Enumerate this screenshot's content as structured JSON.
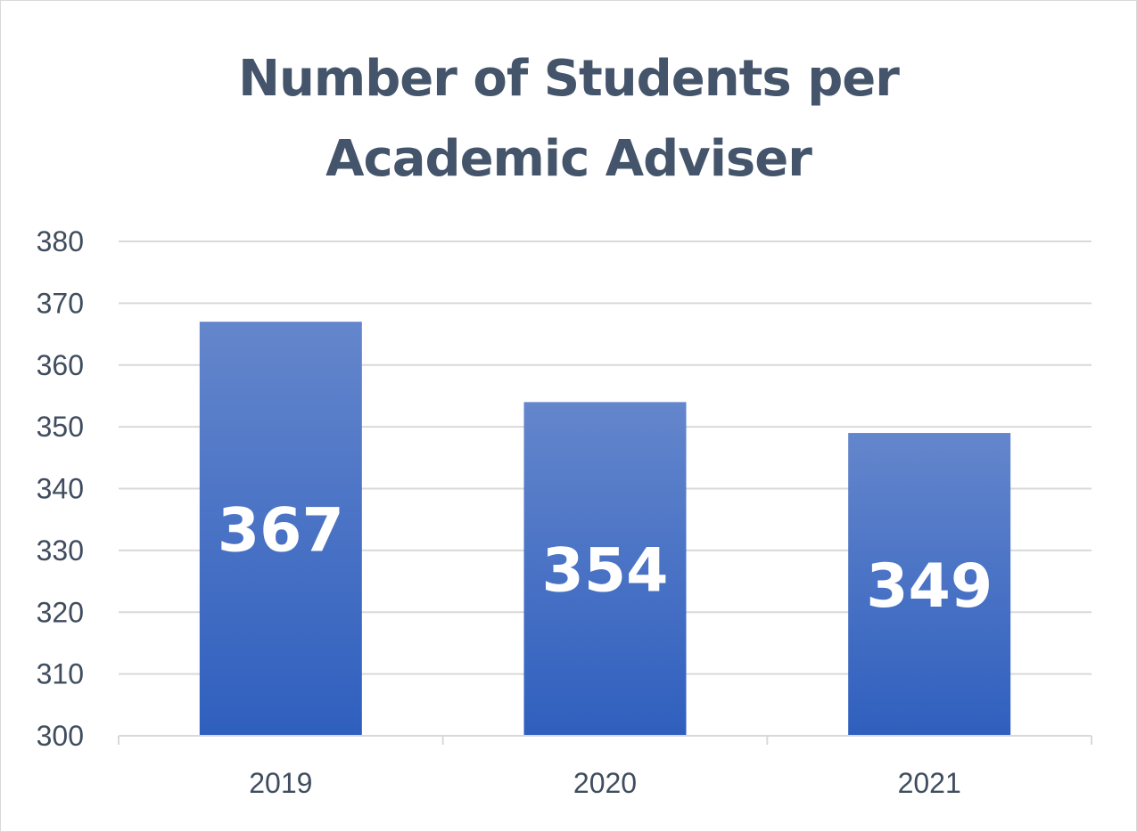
{
  "chart_data": {
    "type": "bar",
    "title_lines": [
      "Number of Students per",
      "Academic Adviser"
    ],
    "categories": [
      "2019",
      "2020",
      "2021"
    ],
    "values": [
      367,
      354,
      349
    ],
    "data_labels": [
      "367",
      "354",
      "349"
    ],
    "ylim": [
      300,
      380
    ],
    "yticks": [
      "300",
      "310",
      "320",
      "330",
      "340",
      "350",
      "360",
      "370",
      "380"
    ],
    "grid": true,
    "legend": "none",
    "colors": {
      "bar_top": "#6486cc",
      "bar_bottom": "#2f5fbe",
      "grid": "#d9d9d9",
      "title": "#44546a",
      "tick": "#404d5e",
      "data_label": "#ffffff"
    }
  }
}
